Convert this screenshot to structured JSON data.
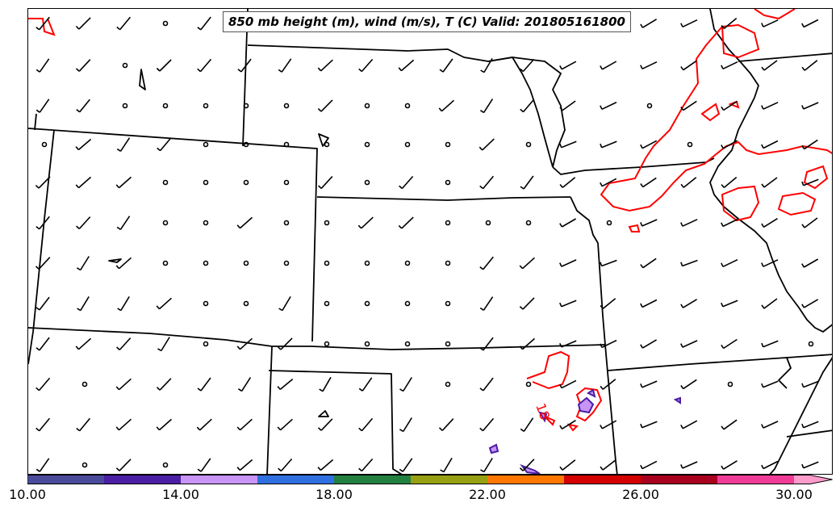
{
  "title": "850 mb height (m), wind (m/s), T (C) Valid: 201805161800",
  "contour_label": "18",
  "colorbar": {
    "tick_labels": [
      "10.00",
      "14.00",
      "18.00",
      "22.00",
      "26.00",
      "30.00"
    ],
    "tick_values": [
      10,
      14,
      18,
      22,
      26,
      30
    ],
    "range": [
      10,
      31
    ],
    "colors": [
      "#4b4b9b",
      "#4a1fa3",
      "#c894f5",
      "#2f6fe0",
      "#228040",
      "#97a012",
      "#ff7700",
      "#d40000",
      "#a8001e",
      "#f03c96",
      "#ff9ccc"
    ],
    "extend": "max"
  },
  "colors": {
    "temperature_contour": "#ff0000",
    "humidity_contour": "#4a1fa3",
    "boundaries": "#000000"
  }
}
